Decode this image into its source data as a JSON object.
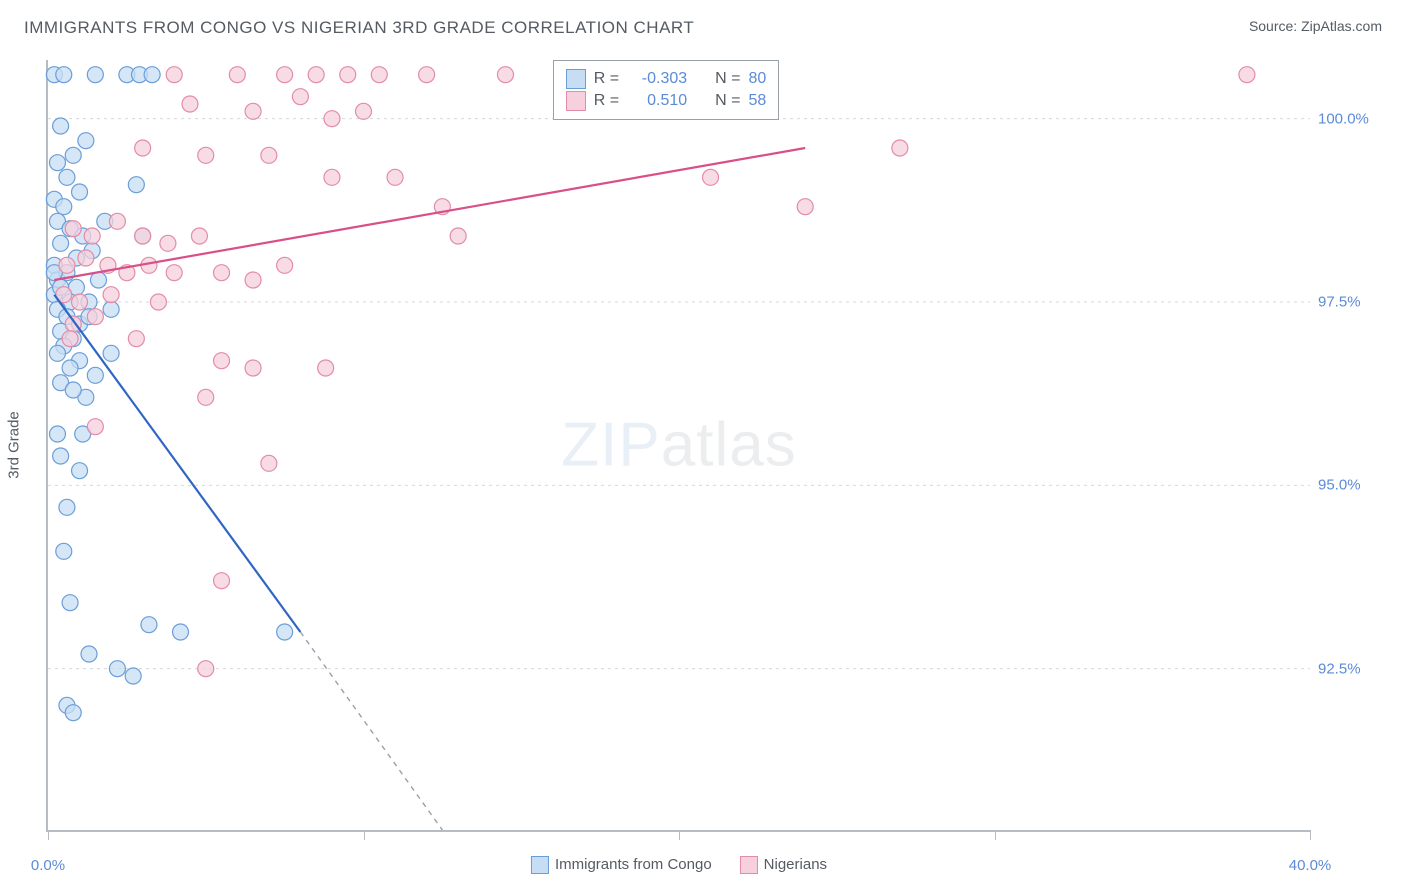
{
  "title": "IMMIGRANTS FROM CONGO VS NIGERIAN 3RD GRADE CORRELATION CHART",
  "source_label": "Source: ",
  "source_name": "ZipAtlas.com",
  "y_axis_label": "3rd Grade",
  "watermark_bold": "ZIP",
  "watermark_thin": "atlas",
  "chart": {
    "type": "scatter",
    "xlim": [
      0,
      40
    ],
    "ylim": [
      90.3,
      100.8
    ],
    "background_color": "#ffffff",
    "grid_color": "#d4d7dc",
    "axis_color": "#b7bcc4",
    "tick_color": "#5b8bd6",
    "label_fontsize": 15,
    "title_fontsize": 17,
    "title_color": "#555b63",
    "x_ticks_major": [
      0,
      10,
      20,
      30,
      40
    ],
    "x_ticks_labeled": [
      {
        "x": 0,
        "label": "0.0%"
      },
      {
        "x": 40,
        "label": "40.0%"
      }
    ],
    "y_gridlines": [
      {
        "y": 100.0,
        "label": "100.0%"
      },
      {
        "y": 97.5,
        "label": "97.5%"
      },
      {
        "y": 95.0,
        "label": "95.0%"
      },
      {
        "y": 92.5,
        "label": "92.5%"
      }
    ],
    "series": [
      {
        "name": "Immigrants from Congo",
        "legend_label": "Immigrants from Congo",
        "marker_fill": "#c7ddf3",
        "marker_stroke": "#6a9ed8",
        "marker_opacity": 0.75,
        "marker_radius": 8,
        "line_color": "#2f66c4",
        "line_dash_color": "#9aa0a9",
        "r_label": "R =",
        "r_value": "-0.303",
        "n_label": "N =",
        "n_value": "80",
        "trend": {
          "x1": 0.2,
          "y1": 97.6,
          "x2": 8.0,
          "y2": 93.0,
          "dash_x2": 12.5,
          "dash_y2": 90.3
        },
        "points": [
          [
            0.2,
            100.6
          ],
          [
            0.5,
            100.6
          ],
          [
            1.5,
            100.6
          ],
          [
            2.5,
            100.6
          ],
          [
            2.9,
            100.6
          ],
          [
            3.3,
            100.6
          ],
          [
            0.3,
            99.4
          ],
          [
            0.6,
            99.2
          ],
          [
            1.0,
            99.0
          ],
          [
            1.2,
            99.7
          ],
          [
            0.4,
            99.9
          ],
          [
            0.8,
            99.5
          ],
          [
            2.8,
            99.1
          ],
          [
            0.2,
            98.9
          ],
          [
            0.5,
            98.8
          ],
          [
            0.3,
            98.6
          ],
          [
            0.7,
            98.5
          ],
          [
            1.1,
            98.4
          ],
          [
            0.4,
            98.3
          ],
          [
            0.9,
            98.1
          ],
          [
            0.2,
            98.0
          ],
          [
            1.4,
            98.2
          ],
          [
            1.8,
            98.6
          ],
          [
            3.0,
            98.4
          ],
          [
            0.3,
            97.8
          ],
          [
            0.6,
            97.9
          ],
          [
            0.2,
            97.6
          ],
          [
            0.9,
            97.7
          ],
          [
            1.3,
            97.5
          ],
          [
            0.4,
            97.7
          ],
          [
            1.6,
            97.8
          ],
          [
            0.7,
            97.5
          ],
          [
            0.2,
            97.9
          ],
          [
            0.3,
            97.4
          ],
          [
            0.6,
            97.3
          ],
          [
            1.0,
            97.2
          ],
          [
            0.4,
            97.1
          ],
          [
            0.8,
            97.0
          ],
          [
            1.3,
            97.3
          ],
          [
            2.0,
            97.4
          ],
          [
            0.5,
            96.9
          ],
          [
            1.0,
            96.7
          ],
          [
            1.5,
            96.5
          ],
          [
            0.3,
            96.8
          ],
          [
            0.7,
            96.6
          ],
          [
            2.0,
            96.8
          ],
          [
            1.2,
            96.2
          ],
          [
            0.4,
            96.4
          ],
          [
            0.8,
            96.3
          ],
          [
            1.1,
            95.7
          ],
          [
            0.3,
            95.7
          ],
          [
            1.0,
            95.2
          ],
          [
            0.4,
            95.4
          ],
          [
            0.6,
            94.7
          ],
          [
            0.5,
            94.1
          ],
          [
            0.7,
            93.4
          ],
          [
            3.2,
            93.1
          ],
          [
            4.2,
            93.0
          ],
          [
            7.5,
            93.0
          ],
          [
            1.3,
            92.7
          ],
          [
            2.2,
            92.5
          ],
          [
            2.7,
            92.4
          ],
          [
            0.6,
            92.0
          ],
          [
            0.8,
            91.9
          ]
        ]
      },
      {
        "name": "Nigerians",
        "legend_label": "Nigerians",
        "marker_fill": "#f6d0dc",
        "marker_stroke": "#e48ba8",
        "marker_opacity": 0.75,
        "marker_radius": 8,
        "line_color": "#d94f88",
        "r_label": "R =",
        "r_value": "0.510",
        "n_label": "N =",
        "n_value": "58",
        "trend": {
          "x1": 0.2,
          "y1": 97.8,
          "x2": 24.0,
          "y2": 99.6
        },
        "points": [
          [
            4.0,
            100.6
          ],
          [
            6.0,
            100.6
          ],
          [
            7.5,
            100.6
          ],
          [
            8.5,
            100.6
          ],
          [
            9.5,
            100.6
          ],
          [
            10.5,
            100.6
          ],
          [
            12.0,
            100.6
          ],
          [
            14.5,
            100.6
          ],
          [
            38.0,
            100.6
          ],
          [
            4.5,
            100.2
          ],
          [
            6.5,
            100.1
          ],
          [
            8.0,
            100.3
          ],
          [
            9.0,
            100.0
          ],
          [
            10.0,
            100.1
          ],
          [
            3.0,
            99.6
          ],
          [
            5.0,
            99.5
          ],
          [
            7.0,
            99.5
          ],
          [
            27.0,
            99.6
          ],
          [
            9.0,
            99.2
          ],
          [
            11.0,
            99.2
          ],
          [
            21.0,
            99.2
          ],
          [
            12.5,
            98.8
          ],
          [
            24.0,
            98.8
          ],
          [
            0.8,
            98.5
          ],
          [
            1.4,
            98.4
          ],
          [
            2.2,
            98.6
          ],
          [
            3.0,
            98.4
          ],
          [
            3.8,
            98.3
          ],
          [
            4.8,
            98.4
          ],
          [
            13.0,
            98.4
          ],
          [
            0.6,
            98.0
          ],
          [
            1.2,
            98.1
          ],
          [
            1.9,
            98.0
          ],
          [
            2.5,
            97.9
          ],
          [
            3.2,
            98.0
          ],
          [
            4.0,
            97.9
          ],
          [
            5.5,
            97.9
          ],
          [
            6.5,
            97.8
          ],
          [
            7.5,
            98.0
          ],
          [
            0.5,
            97.6
          ],
          [
            1.0,
            97.5
          ],
          [
            2.0,
            97.6
          ],
          [
            3.5,
            97.5
          ],
          [
            0.8,
            97.2
          ],
          [
            1.5,
            97.3
          ],
          [
            0.7,
            97.0
          ],
          [
            2.8,
            97.0
          ],
          [
            5.5,
            96.7
          ],
          [
            6.5,
            96.6
          ],
          [
            8.8,
            96.6
          ],
          [
            5.0,
            96.2
          ],
          [
            1.5,
            95.8
          ],
          [
            7.0,
            95.3
          ],
          [
            5.5,
            93.7
          ],
          [
            5.0,
            92.5
          ]
        ]
      }
    ]
  }
}
